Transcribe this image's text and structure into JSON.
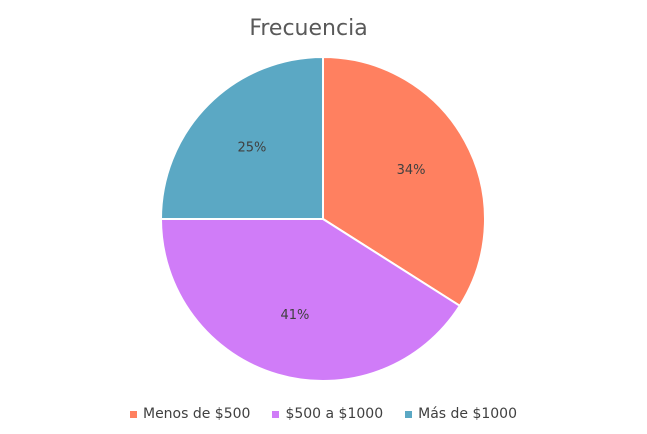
{
  "chart_data": {
    "type": "pie",
    "title": "Frecuencia",
    "categories": [
      "Menos de $500",
      "$500 a $1000",
      "Más de $1000"
    ],
    "values": [
      34,
      41,
      25
    ],
    "value_labels": [
      "34%",
      "41%",
      "25%"
    ],
    "colors": [
      "#FF8060",
      "#D07CF8",
      "#5BA8C4"
    ],
    "start_angle_deg": 0,
    "direction": "clockwise",
    "legend_position": "bottom"
  }
}
